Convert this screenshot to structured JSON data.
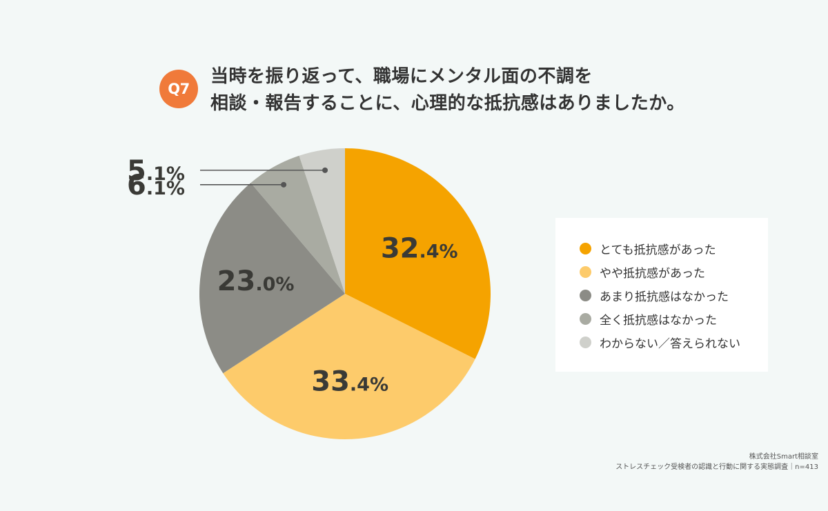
{
  "question": {
    "badge": "Q7",
    "title_line1": "当時を振り返って、職場にメンタル面の不調を",
    "title_line2": "相談・報告することに、心理的な抵抗感はありましたか。"
  },
  "chart_data": {
    "type": "pie",
    "slices": [
      {
        "label": "とても抵抗感があった",
        "value": 32.4,
        "int": "32",
        "dec": ".4%",
        "color": "#f5a300"
      },
      {
        "label": "やや抵抗感があった",
        "value": 33.4,
        "int": "33",
        "dec": ".4%",
        "color": "#fdcb6b"
      },
      {
        "label": "あまり抵抗感はなかった",
        "value": 23.0,
        "int": "23",
        "dec": ".0%",
        "color": "#8c8c86"
      },
      {
        "label": "全く抵抗感はなかった",
        "value": 6.1,
        "int": "6",
        "dec": ".1%",
        "color": "#a9aba2"
      },
      {
        "label": "わからない／答えられない",
        "value": 5.1,
        "int": "5",
        "dec": ".1%",
        "color": "#cfd0cb"
      }
    ],
    "start": "12 o'clock, clockwise",
    "legend_position": "right"
  },
  "source": {
    "line1": "株式会社Smart相談室",
    "line2": "ストレスチェック受検者の認識と行動に関する実態調査｜n=413"
  }
}
